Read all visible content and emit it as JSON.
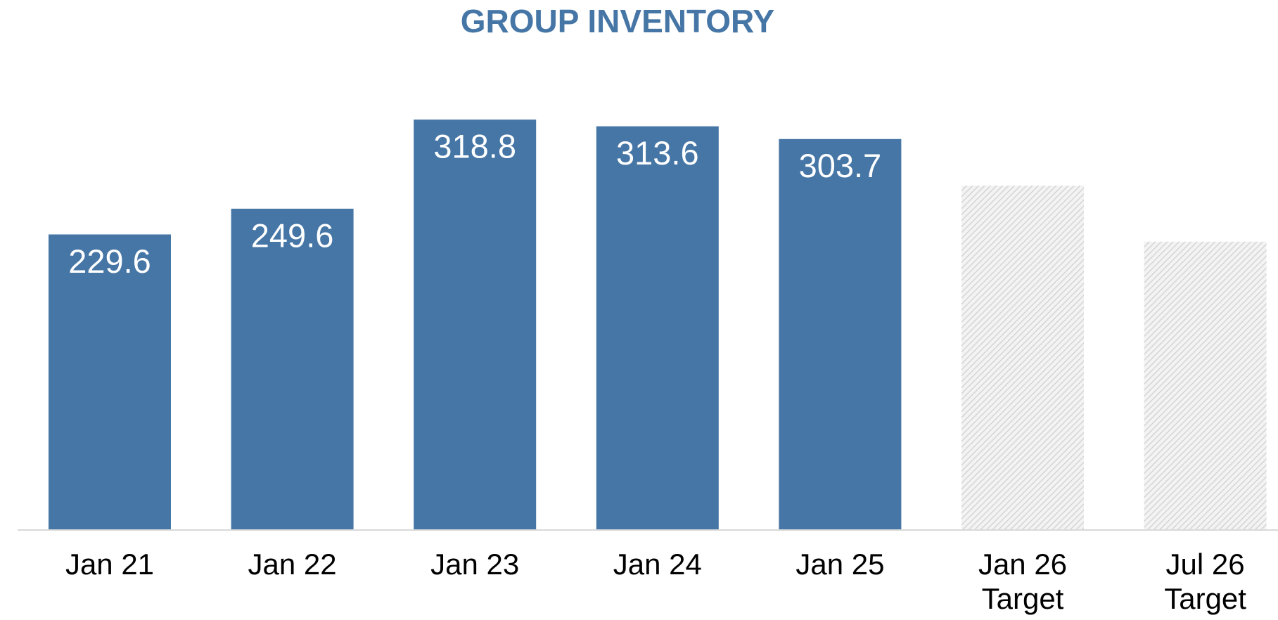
{
  "chart_data": {
    "type": "bar",
    "title": "GROUP INVENTORY",
    "categories": [
      "Jan 21",
      "Jan 22",
      "Jan 23",
      "Jan 24",
      "Jan 25",
      "Jan 26\nTarget",
      "Jul 26\nTarget"
    ],
    "values": [
      229.6,
      249.6,
      318.8,
      313.6,
      303.7,
      267.5,
      224
    ],
    "value_labels": [
      "229.6",
      "249.6",
      "318.8",
      "313.6",
      "303.7",
      null,
      null
    ],
    "colors": [
      "#4676a6",
      "#4676a6",
      "#4676a6",
      "#4676a6",
      "#4676a6",
      "#d9d9d9",
      "#d9d9d9"
    ],
    "hatch": [
      false,
      false,
      false,
      false,
      false,
      true,
      true
    ],
    "ylim": [
      0,
      350
    ]
  }
}
